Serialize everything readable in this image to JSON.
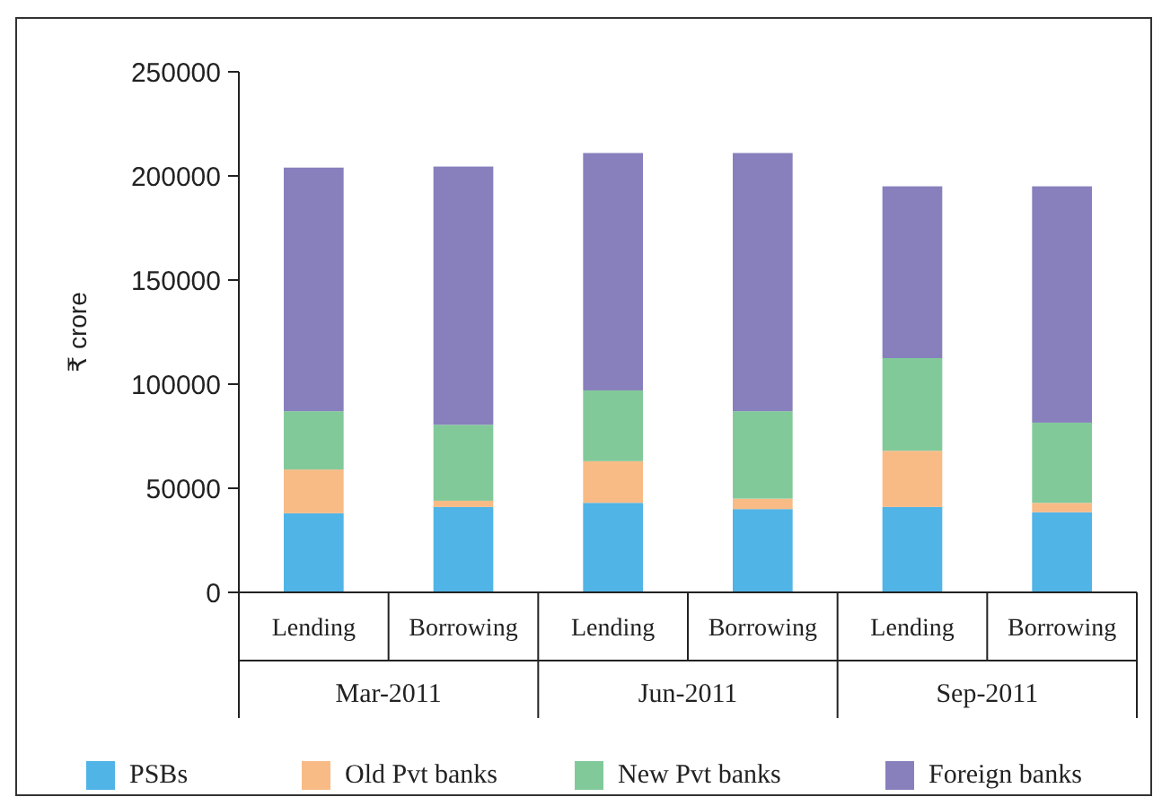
{
  "chart_data": {
    "type": "bar",
    "stacked": true,
    "ylabel": "₹ crore",
    "categories": [
      "Lending",
      "Borrowing",
      "Lending",
      "Borrowing",
      "Lending",
      "Borrowing"
    ],
    "annotations": [
      "Mar-2011",
      "Jun-2011",
      "Sep-2011"
    ],
    "ylim": [
      0,
      250000
    ],
    "yticks": [
      0,
      50000,
      100000,
      150000,
      200000,
      250000
    ],
    "grid": false,
    "legend": "bottom",
    "series": [
      {
        "name": "PSBs",
        "color": "#50b4e6",
        "values": [
          38000,
          41000,
          43000,
          40000,
          41000,
          38500
        ]
      },
      {
        "name": "Old Pvt banks",
        "color": "#f8bb86",
        "values": [
          21000,
          3000,
          20000,
          5000,
          27000,
          4500
        ]
      },
      {
        "name": "New Pvt banks",
        "color": "#82c99a",
        "values": [
          28000,
          36500,
          34000,
          42000,
          44500,
          38500
        ]
      },
      {
        "name": "Foreign banks",
        "color": "#8780bd",
        "values": [
          117000,
          124000,
          114000,
          124000,
          82500,
          113500
        ]
      }
    ]
  }
}
